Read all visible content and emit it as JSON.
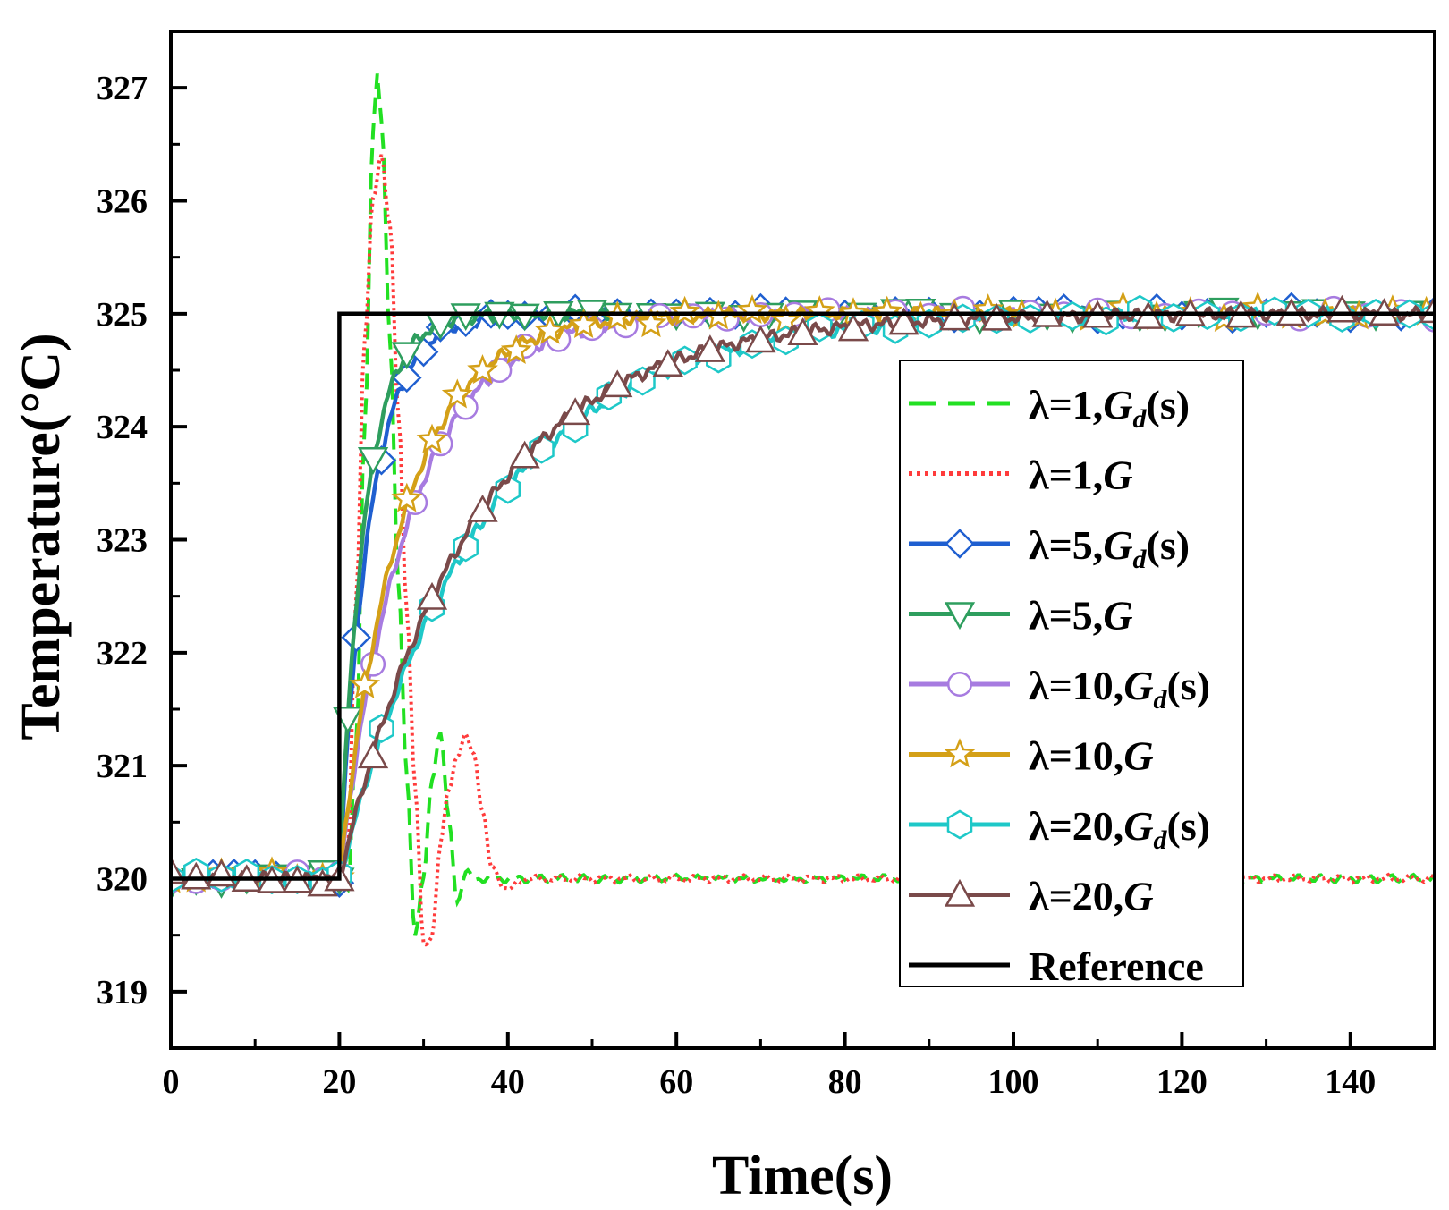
{
  "chart_data": {
    "type": "line",
    "title": "",
    "xlabel": "Time(s)",
    "ylabel": "Temperature(°C)",
    "xlim": [
      0,
      150
    ],
    "ylim": [
      318.5,
      327.5
    ],
    "x_ticks": [
      0,
      20,
      40,
      60,
      80,
      100,
      120,
      140
    ],
    "x_tick_labels": [
      "0",
      "20",
      "40",
      "60",
      "80",
      "100",
      "120",
      "140"
    ],
    "y_ticks": [
      319,
      320,
      321,
      322,
      323,
      324,
      325,
      326,
      327
    ],
    "y_tick_labels": [
      "319",
      "320",
      "321",
      "322",
      "323",
      "324",
      "325",
      "326",
      "327"
    ],
    "grid": false,
    "legend_position": "center-right",
    "series": [
      {
        "name": "λ=1,Gd(s)",
        "label_main": "λ=1,",
        "label_italic": "G",
        "label_sub": "d",
        "label_tail": "(s)",
        "color": "#22e022",
        "style": "dashed",
        "marker": "none",
        "step_time": 20,
        "initial": 320,
        "final": 325,
        "response": [
          [
            0,
            0
          ],
          [
            1,
            -0.08
          ],
          [
            2,
            1.2
          ],
          [
            3,
            4.0
          ],
          [
            4,
            6.6
          ],
          [
            4.5,
            7.1
          ],
          [
            5,
            6.7
          ],
          [
            6,
            4.8
          ],
          [
            7,
            2.6
          ],
          [
            8,
            0.9
          ],
          [
            9,
            -0.5
          ],
          [
            10,
            0.0
          ],
          [
            11,
            0.9
          ],
          [
            12,
            1.3
          ],
          [
            13,
            0.5
          ],
          [
            14,
            -0.2
          ],
          [
            15,
            0.05
          ],
          [
            16,
            0.0
          ],
          [
            130,
            0.0
          ]
        ]
      },
      {
        "name": "λ=1,G",
        "label_main": "λ=1,",
        "label_italic": "G",
        "label_sub": "",
        "label_tail": "",
        "color": "#ff3b3b",
        "style": "dotted",
        "marker": "none",
        "step_time": 20,
        "initial": 320,
        "final": 325,
        "response": [
          [
            0,
            0
          ],
          [
            1,
            0.2
          ],
          [
            2,
            2.5
          ],
          [
            3,
            4.8
          ],
          [
            4,
            6.0
          ],
          [
            5,
            6.4
          ],
          [
            6,
            5.8
          ],
          [
            7,
            4.1
          ],
          [
            8,
            2.4
          ],
          [
            9,
            0.8
          ],
          [
            10,
            -0.6
          ],
          [
            11,
            -0.5
          ],
          [
            12,
            0.3
          ],
          [
            13,
            0.8
          ],
          [
            14,
            1.1
          ],
          [
            15,
            1.25
          ],
          [
            16,
            1.1
          ],
          [
            17,
            0.6
          ],
          [
            18,
            0.1
          ],
          [
            20,
            -0.1
          ],
          [
            22,
            0.0
          ],
          [
            130,
            0.0
          ]
        ]
      },
      {
        "name": "λ=5,Gd(s)",
        "label_main": "λ=5,",
        "label_italic": "G",
        "label_sub": "d",
        "label_tail": "(s)",
        "color": "#1f5fd0",
        "style": "solid",
        "marker": "diamond",
        "step_time": 20,
        "initial": 320,
        "final": 325,
        "tau": 3.6,
        "marker_times": [
          -20,
          -17.5,
          -15,
          -12.5,
          -10,
          -7.5,
          -5,
          -2.5,
          0,
          2,
          5,
          8,
          10,
          12,
          15,
          18,
          20,
          22,
          25,
          28,
          30,
          33,
          37,
          40,
          44,
          47,
          50,
          53,
          57,
          60,
          63,
          66,
          70,
          73,
          76,
          80,
          83,
          86,
          90,
          93,
          97,
          100,
          103,
          106,
          110,
          113,
          116,
          120,
          123,
          126,
          130
        ]
      },
      {
        "name": "λ=5,G",
        "label_main": "λ=5,",
        "label_italic": "G",
        "label_sub": "",
        "label_tail": "",
        "color": "#2e9e5e",
        "style": "solid",
        "marker": "triangle-down",
        "step_time": 20,
        "initial": 320,
        "final": 325,
        "tau": 3.0,
        "marker_times": [
          -20,
          -17,
          -14,
          -11,
          -8,
          -5,
          -2,
          0,
          1,
          4,
          8,
          12,
          15,
          19,
          22,
          26,
          30,
          33,
          37,
          40,
          44,
          48,
          51,
          55,
          59,
          62,
          66,
          69,
          73,
          76,
          80,
          84,
          87,
          91,
          95,
          98,
          102,
          105,
          109,
          113,
          116,
          120,
          123,
          127,
          130
        ]
      },
      {
        "name": "λ=10,Gd(s)",
        "label_main": "λ=10,",
        "label_italic": "G",
        "label_sub": "d",
        "label_tail": "(s)",
        "color": "#a77be0",
        "style": "solid",
        "marker": "circle",
        "step_time": 20,
        "initial": 320,
        "final": 325,
        "tau": 8.2,
        "marker_times": [
          -20,
          -17,
          -14,
          -11,
          -8,
          -5,
          -2,
          0,
          4,
          9,
          12,
          15,
          19,
          22,
          26,
          30,
          34,
          38,
          42,
          46,
          50,
          54,
          58,
          62,
          66,
          70,
          74,
          78,
          82,
          86,
          90,
          94,
          98,
          102,
          106,
          110,
          114,
          118,
          122,
          126,
          130
        ]
      },
      {
        "name": "λ=10,G",
        "label_main": "λ=10,",
        "label_italic": "G",
        "label_sub": "",
        "label_tail": "",
        "color": "#d4a017",
        "style": "solid",
        "marker": "star",
        "step_time": 20,
        "initial": 320,
        "final": 325,
        "tau": 7.4,
        "marker_times": [
          -20,
          -17,
          -14,
          -11,
          -8,
          -5,
          -2,
          0,
          3,
          8,
          11,
          14,
          17,
          21,
          25,
          29,
          33,
          37,
          41,
          45,
          49,
          53,
          57,
          61,
          65,
          69,
          73,
          77,
          81,
          85,
          89,
          93,
          97,
          101,
          105,
          109,
          113,
          117,
          121,
          125,
          129
        ]
      },
      {
        "name": "λ=20,Gd(s)",
        "label_main": "λ=20,",
        "label_italic": "G",
        "label_sub": "d",
        "label_tail": "(s)",
        "color": "#1ec8c8",
        "style": "solid",
        "marker": "hexagon",
        "step_time": 20,
        "initial": 320,
        "final": 325,
        "tau": 17.0,
        "marker_times": [
          -20,
          -17,
          -14,
          -11,
          -8,
          -5,
          -2,
          0,
          5,
          11,
          15,
          20,
          24,
          28,
          32,
          36,
          41,
          45,
          49,
          53,
          57,
          62,
          66,
          70,
          74,
          78,
          82,
          87,
          91,
          95,
          99,
          103,
          107,
          111,
          115,
          119,
          123,
          127,
          130
        ]
      },
      {
        "name": "λ=20,G",
        "label_main": "λ=20,",
        "label_italic": "G",
        "label_sub": "",
        "label_tail": "",
        "color": "#7a4a4a",
        "style": "solid",
        "marker": "triangle-up",
        "step_time": 20,
        "initial": 320,
        "final": 325,
        "tau": 16.0,
        "marker_times": [
          -20,
          -17,
          -14,
          -11,
          -8,
          -5,
          -2,
          0,
          4,
          11,
          17,
          22,
          28,
          33,
          39,
          44,
          50,
          55,
          61,
          67,
          73,
          78,
          84,
          90,
          96,
          101,
          107,
          113,
          119,
          124,
          130
        ]
      },
      {
        "name": "Reference",
        "label_main": "Reference",
        "label_italic": "",
        "label_sub": "",
        "label_tail": "",
        "color": "#000000",
        "style": "solid",
        "marker": "none",
        "x": [
          0,
          20,
          20,
          150
        ],
        "y": [
          320,
          320,
          325,
          325
        ]
      }
    ]
  }
}
